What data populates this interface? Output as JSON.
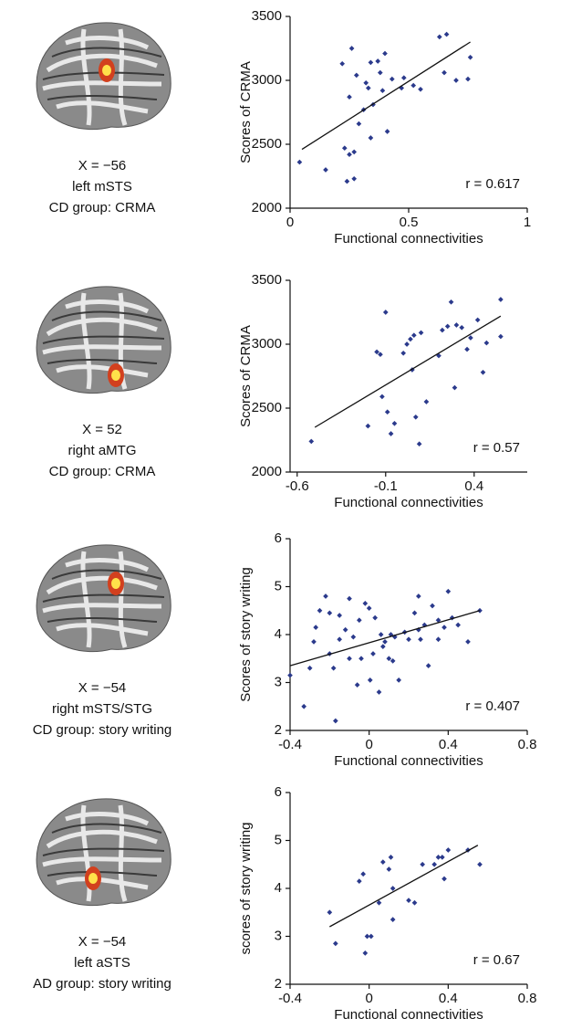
{
  "chart_data": [
    {
      "type": "scatter",
      "xlabel": "Functional connectivities",
      "ylabel": "Scores of CRMA",
      "caption": [
        "X = −56",
        "left mSTS",
        "CD group: CRMA"
      ],
      "annotation": "r = 0.617",
      "xlim": [
        0,
        1
      ],
      "xticks": [
        0,
        0.5,
        1
      ],
      "ylim": [
        2000,
        3500
      ],
      "yticks": [
        2000,
        2500,
        3000,
        3500
      ],
      "series": [
        {
          "color": "#2b3a8c",
          "x": [
            0.04,
            0.15,
            0.22,
            0.23,
            0.24,
            0.25,
            0.25,
            0.26,
            0.27,
            0.27,
            0.28,
            0.29,
            0.31,
            0.32,
            0.33,
            0.34,
            0.34,
            0.35,
            0.37,
            0.38,
            0.39,
            0.4,
            0.41,
            0.43,
            0.47,
            0.48,
            0.52,
            0.55,
            0.63,
            0.66,
            0.65,
            0.7,
            0.76,
            0.75
          ],
          "values": [
            2360,
            2300,
            3130,
            2470,
            2210,
            2870,
            2420,
            3250,
            2230,
            2440,
            3040,
            2660,
            2770,
            2980,
            2940,
            3140,
            2550,
            2810,
            3150,
            3060,
            2920,
            3210,
            2600,
            3010,
            2940,
            3020,
            2960,
            2930,
            3340,
            3360,
            3060,
            3000,
            3180,
            3010
          ]
        }
      ],
      "trend": {
        "x": [
          0.05,
          0.76
        ],
        "values": [
          2460,
          3300
        ]
      }
    },
    {
      "type": "scatter",
      "xlabel": "Functional connectivities",
      "ylabel": "Scores of CRMA",
      "caption": [
        "X = 52",
        "right aMTG",
        "CD group: CRMA"
      ],
      "annotation": "r = 0.57",
      "xlim": [
        -0.64,
        0.7
      ],
      "xticks": [
        -0.6,
        -0.1,
        0.4
      ],
      "ylim": [
        2000,
        3500
      ],
      "yticks": [
        2000,
        2500,
        3000,
        3500
      ],
      "series": [
        {
          "color": "#2b3a8c",
          "x": [
            -0.52,
            -0.2,
            -0.15,
            -0.13,
            -0.12,
            -0.1,
            -0.09,
            -0.07,
            -0.05,
            0,
            0.02,
            0.04,
            0.05,
            0.06,
            0.07,
            0.09,
            0.1,
            0.13,
            0.2,
            0.22,
            0.25,
            0.27,
            0.29,
            0.3,
            0.33,
            0.36,
            0.38,
            0.42,
            0.45,
            0.47,
            0.55,
            0.55
          ],
          "values": [
            2240,
            2360,
            2940,
            2920,
            2590,
            3250,
            2470,
            2300,
            2380,
            2930,
            3000,
            3040,
            2800,
            3070,
            2430,
            2220,
            3090,
            2550,
            2910,
            3110,
            3140,
            3330,
            2660,
            3150,
            3130,
            2960,
            3050,
            3190,
            2780,
            3010,
            3350,
            3060
          ]
        }
      ],
      "trend": {
        "x": [
          -0.5,
          0.55
        ],
        "values": [
          2350,
          3220
        ]
      }
    },
    {
      "type": "scatter",
      "xlabel": "Functional connectivities",
      "ylabel": "Scores of story writing",
      "caption": [
        "X = −54",
        "right mSTS/STG",
        "CD group: story writing"
      ],
      "annotation": "r = 0.407",
      "xlim": [
        -0.4,
        0.8
      ],
      "xticks": [
        -0.4,
        0,
        0.4,
        0.8
      ],
      "ylim": [
        2,
        6
      ],
      "yticks": [
        2,
        3,
        4,
        5,
        6
      ],
      "series": [
        {
          "color": "#2b3a8c",
          "x": [
            -0.4,
            -0.33,
            -0.3,
            -0.28,
            -0.27,
            -0.25,
            -0.22,
            -0.2,
            -0.2,
            -0.18,
            -0.17,
            -0.15,
            -0.15,
            -0.12,
            -0.1,
            -0.1,
            -0.08,
            -0.06,
            -0.05,
            -0.04,
            -0.02,
            0,
            0.005,
            0.02,
            0.03,
            0.05,
            0.06,
            0.07,
            0.08,
            0.1,
            0.11,
            0.12,
            0.13,
            0.15,
            0.18,
            0.2,
            0.23,
            0.25,
            0.26,
            0.28,
            0.3,
            0.32,
            0.35,
            0.38,
            0.4,
            0.42,
            0.45,
            0.5,
            0.56,
            0.25,
            0.35
          ],
          "values": [
            3.15,
            2.5,
            3.3,
            3.85,
            4.15,
            4.5,
            4.8,
            4.45,
            3.6,
            3.3,
            2.2,
            4.4,
            3.9,
            4.1,
            4.75,
            3.5,
            3.95,
            2.95,
            4.3,
            3.5,
            4.65,
            4.55,
            3.05,
            3.6,
            4.35,
            2.8,
            4,
            3.75,
            3.85,
            3.5,
            4,
            3.45,
            3.95,
            3.05,
            4.05,
            3.9,
            4.45,
            4.8,
            3.9,
            4.2,
            3.35,
            4.6,
            4.3,
            4.15,
            4.9,
            4.35,
            4.2,
            3.85,
            4.5,
            4.1,
            3.9
          ]
        }
      ],
      "trend": {
        "x": [
          -0.4,
          0.56
        ],
        "values": [
          3.35,
          4.5
        ]
      }
    },
    {
      "type": "scatter",
      "xlabel": "Functional connectivities",
      "ylabel": "scores of story writing",
      "caption": [
        "X = −54",
        "left aSTS",
        "AD group: story writing"
      ],
      "annotation": "r = 0.67",
      "xlim": [
        -0.4,
        0.8
      ],
      "xticks": [
        -0.4,
        0,
        0.4,
        0.8
      ],
      "ylim": [
        2,
        6
      ],
      "yticks": [
        2,
        3,
        4,
        5,
        6
      ],
      "series": [
        {
          "color": "#2b3a8c",
          "x": [
            -0.2,
            -0.17,
            -0.05,
            -0.03,
            -0.02,
            -0.01,
            0.01,
            0.05,
            0.07,
            0.1,
            0.11,
            0.12,
            0.12,
            0.2,
            0.23,
            0.27,
            0.33,
            0.35,
            0.37,
            0.38,
            0.4,
            0.5,
            0.56
          ],
          "values": [
            3.5,
            2.85,
            4.15,
            4.3,
            2.65,
            3,
            3,
            3.7,
            4.55,
            4.4,
            4.65,
            4,
            3.35,
            3.75,
            3.7,
            4.5,
            4.5,
            4.65,
            4.65,
            4.2,
            4.8,
            4.8,
            4.5
          ]
        }
      ],
      "trend": {
        "x": [
          -0.2,
          0.55
        ],
        "values": [
          3.2,
          4.9
        ]
      }
    }
  ]
}
